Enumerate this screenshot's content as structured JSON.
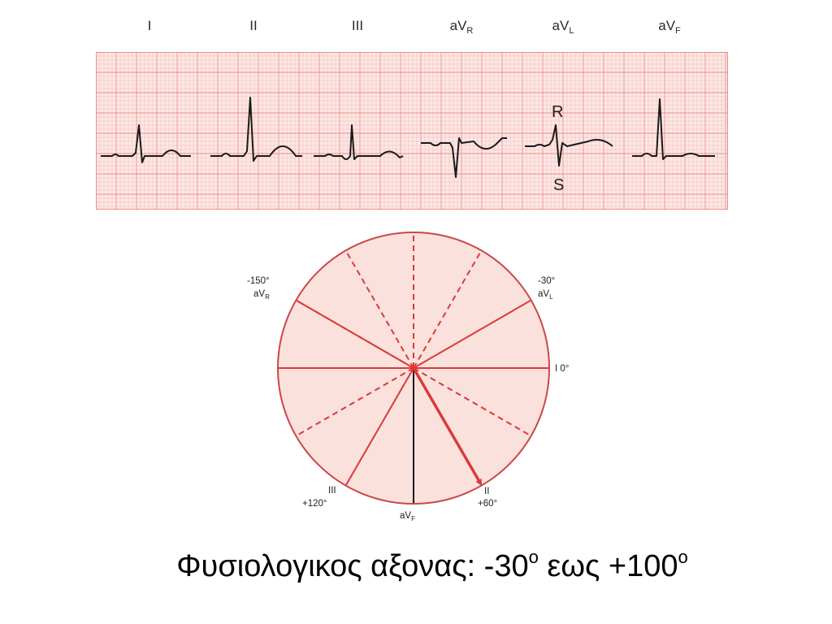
{
  "leads": [
    {
      "name": "I",
      "sub": ""
    },
    {
      "name": "II",
      "sub": ""
    },
    {
      "name": "III",
      "sub": ""
    },
    {
      "name": "aV",
      "sub": "R"
    },
    {
      "name": "aV",
      "sub": "L"
    },
    {
      "name": "aV",
      "sub": "F"
    }
  ],
  "wave_labels": {
    "r": "R",
    "s": "S"
  },
  "axis_labels": {
    "avr_angle": "-150°",
    "avr_name": "aV",
    "avr_sub": "R",
    "avl_angle": "-30°",
    "avl_name": "aV",
    "avl_sub": "L",
    "lead1": "I 0°",
    "lead3_name": "III",
    "lead3_angle": "+120°",
    "avf_name": "aV",
    "avf_sub": "F",
    "lead2_name": "II",
    "lead2_angle": "+60°"
  },
  "axis_vector_angle_deg": 60,
  "caption": {
    "text": "Φυσιολογικος αξονας: -30",
    "sup1": "o",
    "mid": " εως +100",
    "sup2": "o"
  },
  "colors": {
    "grid_fine": "#f3b8b4",
    "grid_bold": "#e88e88",
    "paper": "#fde8e6",
    "circle_fill": "#fbe1dc",
    "red_line": "#d93a3a",
    "trace": "#1a1a1a"
  }
}
